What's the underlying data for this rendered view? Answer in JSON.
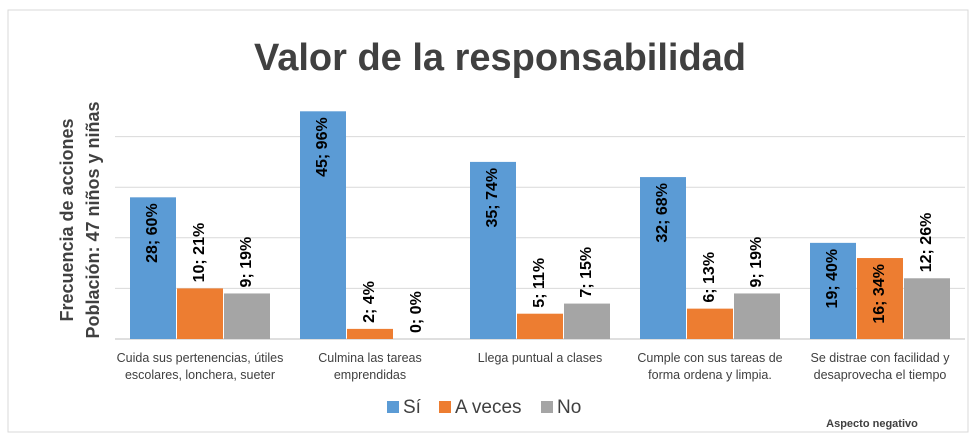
{
  "chart_data": {
    "type": "bar",
    "title": "Valor de la responsabilidad",
    "y_label": [
      "Frecuencia de acciones",
      "Población: 47 niños y niñas"
    ],
    "annotation": "Aspecto negativo",
    "categories": [
      "Cuida sus pertenencias, útiles escolares, lonchera, sueter",
      "Culmina las tareas emprendidas",
      "Llega puntual a clases",
      "Cumple con sus tareas de forma ordena y limpia.",
      "Se distrae con facilidad y desaprovecha el tiempo"
    ],
    "series": [
      {
        "name": "Sí",
        "color": "#5b9bd5",
        "values": [
          28,
          45,
          35,
          32,
          19
        ],
        "value_labels": [
          "28; 60%",
          "45; 96%",
          "35; 74%",
          "32; 68%",
          "19; 40%"
        ]
      },
      {
        "name": "A veces",
        "color": "#ed7d31",
        "values": [
          10,
          2,
          5,
          6,
          16
        ],
        "value_labels": [
          "10; 21%",
          "2; 4%",
          "5; 11%",
          "6; 13%",
          "16; 34%"
        ]
      },
      {
        "name": "No",
        "color": "#a5a5a5",
        "values": [
          9,
          0,
          7,
          9,
          12
        ],
        "value_labels": [
          "9; 19%",
          "0; 0%",
          "7; 15%",
          "9; 19%",
          "12; 26%"
        ]
      }
    ],
    "ylim": [
      0,
      50
    ],
    "yticks": [
      0,
      10,
      20,
      30,
      40
    ],
    "grid": true,
    "legend": "bottom"
  }
}
